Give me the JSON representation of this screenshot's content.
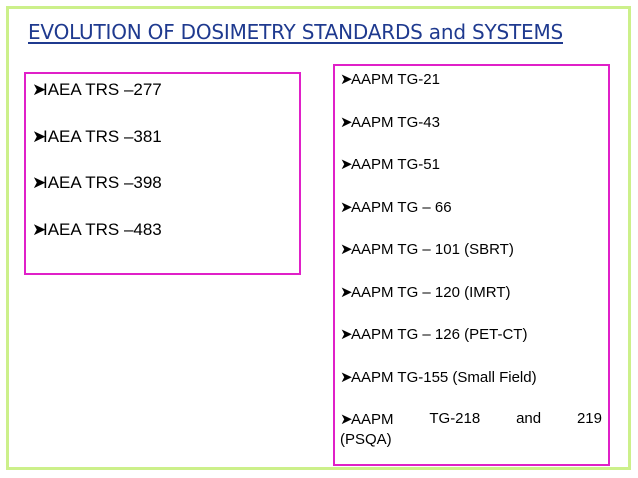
{
  "title": "EVOLUTION OF DOSIMETRY  STANDARDS and SYSTEMS",
  "bullet_icon": "arrowhead-bullet",
  "left_list": [
    "IAEA TRS –277",
    "IAEA TRS –381",
    "IAEA TRS –398",
    "IAEA TRS –483"
  ],
  "right_list": [
    "AAPM TG-21",
    "AAPM TG-43",
    "AAPM TG-51",
    "AAPM TG – 66",
    "AAPM TG – 101 (SBRT)",
    "AAPM TG – 120 (IMRT)",
    "AAPM TG – 126 (PET-CT)",
    "AAPM TG-155 (Small Field)"
  ],
  "right_last_item": {
    "words": [
      "AAPM",
      "TG-218",
      "and",
      "219"
    ],
    "continuation": "(PSQA)"
  },
  "colors": {
    "title": "#1f3a8f",
    "outer_frame": "#ccf08a",
    "box_border": "#e020c8"
  }
}
